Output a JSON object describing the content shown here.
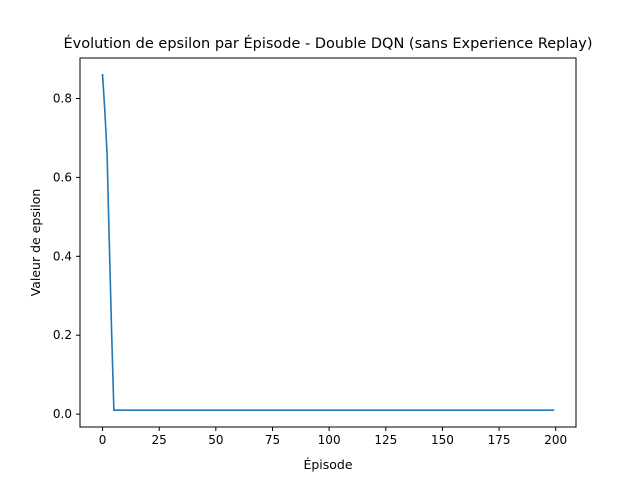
{
  "chart_data": {
    "type": "line",
    "title": "Évolution de epsilon par Épisode - Double DQN (sans Experience Replay)",
    "xlabel": "Épisode",
    "ylabel": "Valeur de epsilon",
    "xlim": [
      -9.95,
      208.95
    ],
    "ylim": [
      -0.0326,
      0.9026
    ],
    "xticks": [
      0,
      25,
      50,
      75,
      100,
      125,
      150,
      175,
      200
    ],
    "yticks": [
      0.0,
      0.2,
      0.4,
      0.6,
      0.8
    ],
    "xtick_labels": [
      "0",
      "25",
      "50",
      "75",
      "100",
      "125",
      "150",
      "175",
      "200"
    ],
    "ytick_labels": [
      "0.0",
      "0.2",
      "0.4",
      "0.6",
      "0.8"
    ],
    "grid": false,
    "series": [
      {
        "color": "#1f77b4",
        "x": [
          0,
          1,
          2,
          3,
          4,
          5,
          199
        ],
        "y": [
          0.86,
          0.77,
          0.66,
          0.43,
          0.21,
          0.01,
          0.01
        ]
      }
    ]
  }
}
